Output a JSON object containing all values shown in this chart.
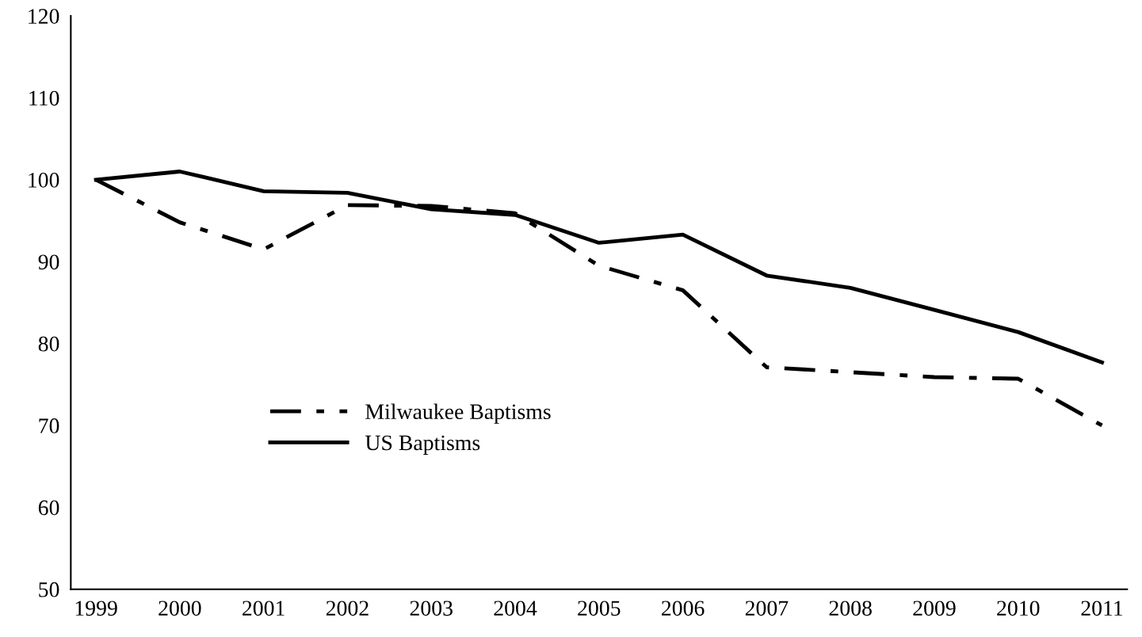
{
  "chart_data": {
    "type": "line",
    "categories": [
      "1999",
      "2000",
      "2001",
      "2002",
      "2003",
      "2004",
      "2005",
      "2006",
      "2007",
      "2008",
      "2009",
      "2010",
      "2011"
    ],
    "series": [
      {
        "name": "Milwaukee Baptisms",
        "color": "#000000",
        "line_style": "dashdot",
        "values": [
          100,
          94.8,
          91.5,
          96.9,
          96.8,
          95.9,
          89.5,
          86.5,
          77.1,
          76.5,
          75.9,
          75.7,
          70.0
        ]
      },
      {
        "name": "US Baptisms",
        "color": "#000000",
        "line_style": "solid",
        "values": [
          100,
          101,
          98.6,
          98.4,
          96.4,
          95.7,
          92.3,
          93.3,
          88.3,
          86.8,
          84.1,
          81.4,
          77.7
        ]
      }
    ],
    "ylim": [
      50,
      120
    ],
    "yticks": [
      50,
      60,
      70,
      80,
      90,
      100,
      110,
      120
    ],
    "grid": false,
    "legend": "center",
    "marker": "none"
  }
}
